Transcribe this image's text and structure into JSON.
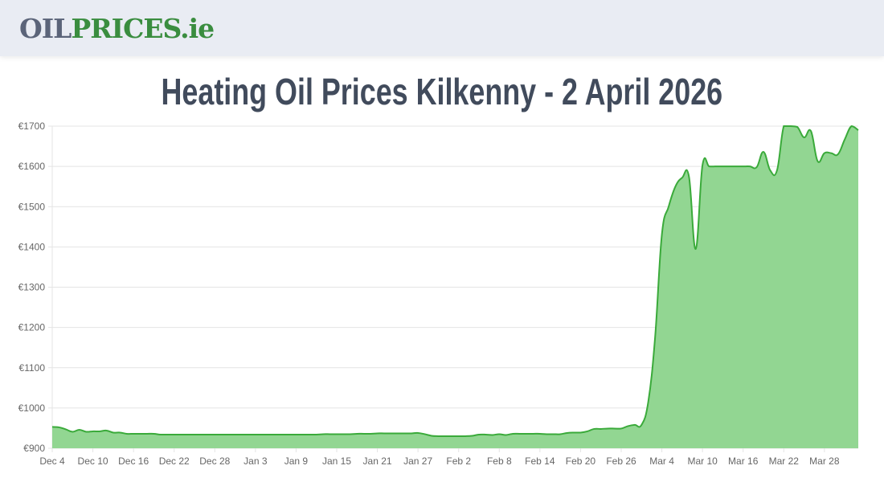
{
  "header": {
    "logo_part1": "OIL",
    "logo_part2": "PRICES.ie"
  },
  "page_title": "Heating Oil Prices Kilkenny - 2 April 2026",
  "colors": {
    "line": "#3aaa3a",
    "fill": "#92d692",
    "grid": "#e4e4e4"
  },
  "chart_data": {
    "type": "area",
    "title": "Heating Oil Prices Kilkenny - 2 April 2026",
    "xlabel": "",
    "ylabel": "",
    "ylim": [
      900,
      1700
    ],
    "yticks": [
      900,
      1000,
      1100,
      1200,
      1300,
      1400,
      1500,
      1600,
      1700
    ],
    "ytick_labels": [
      "€900",
      "€1000",
      "€1100",
      "€1200",
      "€1300",
      "€1400",
      "€1500",
      "€1600",
      "€1700"
    ],
    "start_date": "Dec 4",
    "end_date": "Apr 2",
    "xtick_labels": [
      "Dec 4",
      "Dec 10",
      "Dec 16",
      "Dec 22",
      "Dec 28",
      "Jan 3",
      "Jan 9",
      "Jan 15",
      "Jan 21",
      "Jan 27",
      "Feb 2",
      "Feb 8",
      "Feb 14",
      "Feb 20",
      "Feb 26",
      "Mar 4",
      "Mar 10",
      "Mar 16",
      "Mar 22",
      "Mar 28"
    ],
    "xtick_every_days": 6,
    "grid": true,
    "values": [
      953,
      952,
      947,
      941,
      946,
      941,
      942,
      942,
      944,
      939,
      939,
      936,
      936,
      936,
      936,
      936,
      934,
      934,
      934,
      934,
      934,
      934,
      934,
      934,
      934,
      934,
      934,
      934,
      934,
      934,
      934,
      934,
      934,
      934,
      934,
      934,
      934,
      934,
      934,
      934,
      935,
      935,
      935,
      935,
      935,
      936,
      936,
      936,
      937,
      937,
      937,
      937,
      937,
      937,
      938,
      935,
      931,
      930,
      930,
      930,
      930,
      930,
      931,
      934,
      934,
      933,
      935,
      933,
      936,
      936,
      936,
      936,
      936,
      935,
      935,
      935,
      938,
      939,
      939,
      942,
      948,
      948,
      949,
      949,
      949,
      955,
      958,
      958,
      1016,
      1175,
      1430,
      1500,
      1550,
      1572,
      1575,
      1395,
      1603,
      1600,
      1600,
      1600,
      1600,
      1600,
      1600,
      1600,
      1598,
      1636,
      1590,
      1590,
      1700,
      1700,
      1698,
      1672,
      1688,
      1613,
      1633,
      1633,
      1630,
      1667,
      1700,
      1690
    ]
  }
}
